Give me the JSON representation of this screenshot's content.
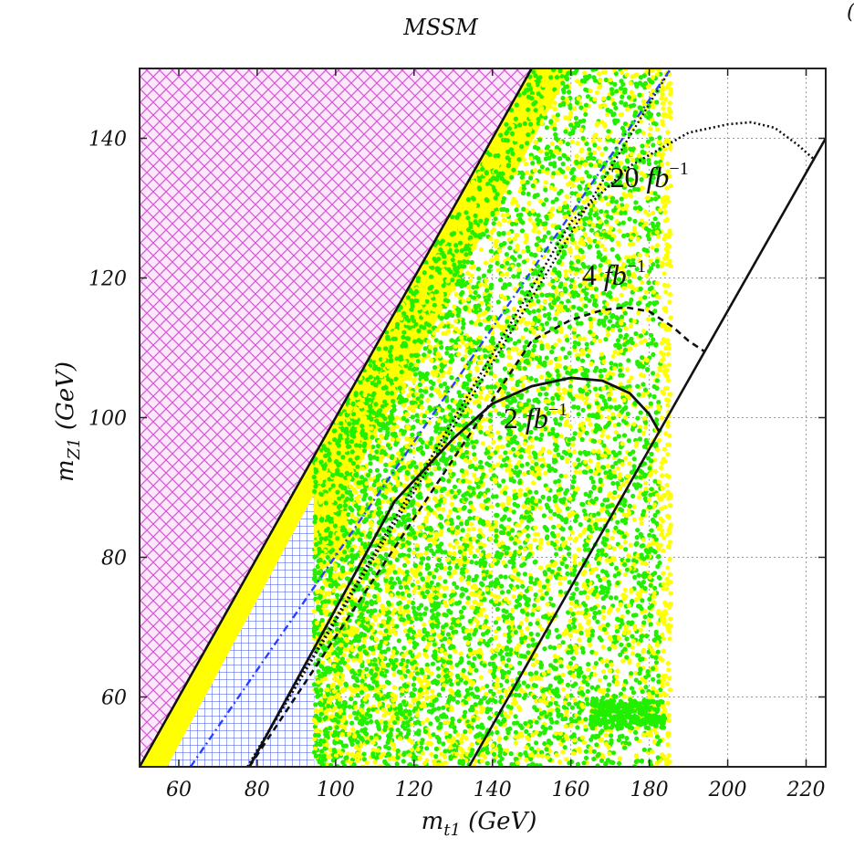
{
  "chart_data": {
    "type": "scatter",
    "title": "MSSM",
    "xlabel": "m_{t1} (GeV)",
    "ylabel": "m_{Z1} (GeV)",
    "xlim": [
      50,
      225
    ],
    "ylim": [
      50,
      150
    ],
    "xticks": [
      60,
      80,
      100,
      120,
      140,
      160,
      180,
      200,
      220
    ],
    "yticks": [
      60,
      80,
      100,
      120,
      140
    ],
    "grid": true,
    "colors": {
      "excluded_region": "#e070e0",
      "lep_region": "#3a50e8",
      "yellow_points": "#ffff00",
      "green_points": "#22ee00",
      "blue_line": "#2a40ff",
      "curves": "#111111"
    },
    "regions": [
      {
        "id": "kinematic_excluded",
        "pattern": "crosshatch",
        "color": "#e070e0",
        "polygon": [
          [
            50,
            50
          ],
          [
            50,
            150
          ],
          [
            150,
            150
          ]
        ]
      },
      {
        "id": "lep_excluded",
        "pattern": "grid",
        "color": "#3a50e8",
        "polygon": [
          [
            50,
            50
          ],
          [
            90.5,
            91
          ],
          [
            94.5,
            91
          ],
          [
            94.5,
            50
          ]
        ]
      }
    ],
    "boundary_lines": [
      {
        "id": "mt_eq_mz",
        "style": "solid",
        "x": [
          50,
          150
        ],
        "y": [
          50,
          150
        ]
      },
      {
        "id": "mt_eq_mz_plus_mb_mw",
        "style": "dotted",
        "x": [
          77.5,
          185.5
        ],
        "y": [
          50,
          150
        ]
      },
      {
        "id": "mt_eq_mz_plus_mb",
        "style": "dashdot",
        "color": "#2a40ff",
        "x": [
          63,
          185.5
        ],
        "y": [
          50,
          150
        ]
      },
      {
        "id": "mt_eq_mz_plus_mt",
        "style": "solid",
        "x": [
          134,
          225
        ],
        "y": [
          50,
          140
        ]
      }
    ],
    "sensitivity_curves": [
      {
        "name": "20 fb⁻¹",
        "label": "20",
        "style": "dotted",
        "x": [
          77.5,
          160,
          175,
          190,
          200,
          206,
          212,
          218,
          222
        ],
        "y": [
          50,
          128,
          136,
          140.8,
          142,
          142.3,
          141.5,
          139,
          137
        ]
      },
      {
        "name": "4 fb⁻¹",
        "label": "4",
        "style": "dashed",
        "x": [
          78,
          150,
          160,
          168,
          174,
          180,
          186,
          190,
          194
        ],
        "y": [
          50,
          111,
          114,
          115.4,
          115.8,
          115.2,
          113,
          111,
          109.5
        ]
      },
      {
        "name": "2 fb⁻¹",
        "label": "2",
        "style": "solid",
        "x": [
          78,
          115,
          130,
          140,
          150,
          160,
          168,
          175,
          180,
          182.5
        ],
        "y": [
          50,
          88,
          97,
          102,
          104.5,
          105.7,
          105.3,
          103.5,
          100.5,
          98
        ]
      }
    ],
    "scan_points": {
      "description_of_distribution": "",
      "yellow": {
        "x_range": [
          94.5,
          185.5
        ],
        "band_below_diagonal": true
      },
      "green": {
        "x_range": [
          94.5,
          183
        ],
        "band_below_diagonal": true
      }
    },
    "annotations": [
      {
        "text": "20",
        "unit": "fb⁻¹",
        "x": 180,
        "y": 133
      },
      {
        "text": "4",
        "unit": "fb⁻¹",
        "x": 171,
        "y": 119
      },
      {
        "text": "2",
        "unit": "fb⁻¹",
        "x": 151,
        "y": 98.5
      }
    ]
  },
  "labels": {
    "title": "MSSM",
    "xlabel_main": "m",
    "xlabel_sub": "t1",
    "xlabel_unit": " (GeV)",
    "ylabel_main": "m",
    "ylabel_sub": "Z1",
    "ylabel_unit": " (GeV)",
    "corner_mark": "("
  }
}
